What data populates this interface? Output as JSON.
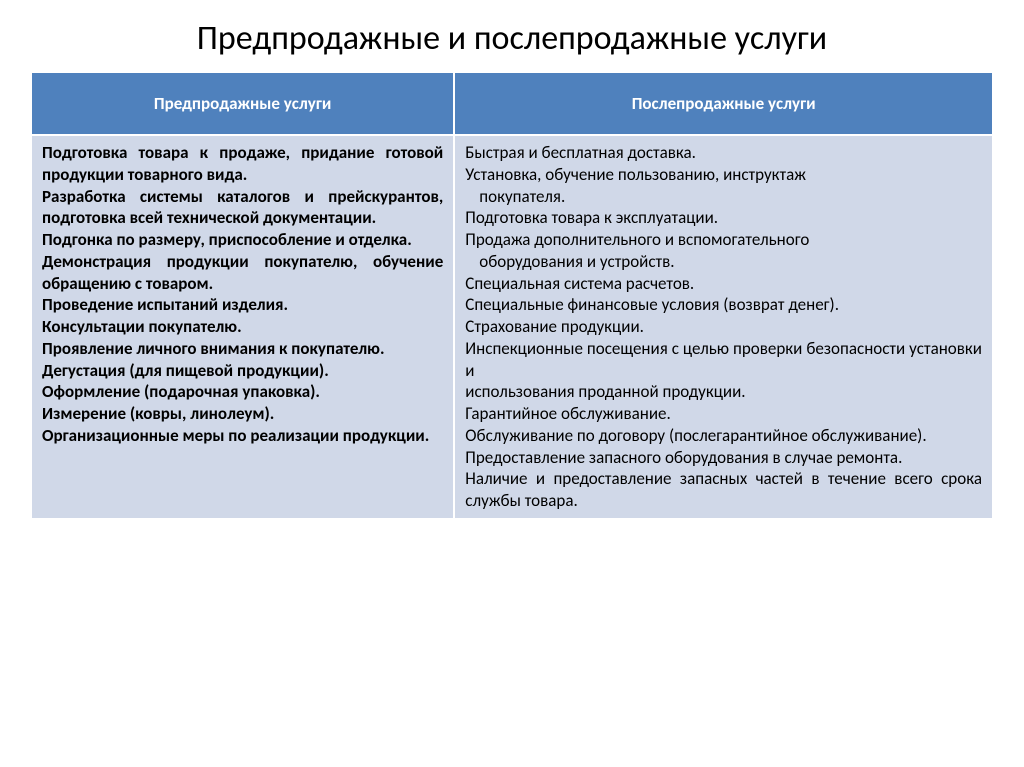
{
  "title": "Предпродажные и послепродажные услуги",
  "headers": {
    "col1": "Предпродажные услуги",
    "col2": "Послепродажные услуги"
  },
  "col1_lines": [
    " Подготовка товара к продаже, придание готовой продукции товарного вида.",
    "Разработка системы каталогов и прейскурантов, подготовка всей технической документации.",
    "Подгонка по размеру, приспособление и отделка.",
    "Демонстрация продукции покупателю, обучение обращению с товаром.",
    "Проведение испытаний изделия.",
    "Консультации покупателю.",
    "Проявление личного внимания к покупателю.",
    "Дегустация (для пищевой продукции).",
    "Оформление (подарочная упаковка).",
    "Измерение (ковры, линолеум).",
    "Организационные меры по реализации продукции."
  ],
  "col2_lines": [
    " Быстрая и бесплатная доставка.",
    "Установка, обучение пользованию, инструктаж",
    "  покупателя.",
    "Подготовка товара к эксплуатации.",
    "Продажа дополнительного и вспомогательного",
    "  оборудования и устройств.",
    "Специальная система расчетов.",
    "Специальные финансовые условия (возврат денег).",
    "Страхование продукции.",
    "Инспекционные посещения с целью проверки безопасности установки и",
    "использования проданной продукции.",
    "Гарантийное обслуживание.",
    "Обслуживание по договору (послегарантийное обслуживание).",
    "Предоставление запасного оборудования в случае ремонта.",
    "Наличие и предоставление запасных частей в течение всего срока службы товара."
  ],
  "colors": {
    "header_bg": "#4f81bd",
    "header_text": "#ffffff",
    "cell_bg": "#d0d8e8",
    "cell_text": "#000000",
    "border": "#ffffff",
    "page_bg": "#ffffff"
  }
}
